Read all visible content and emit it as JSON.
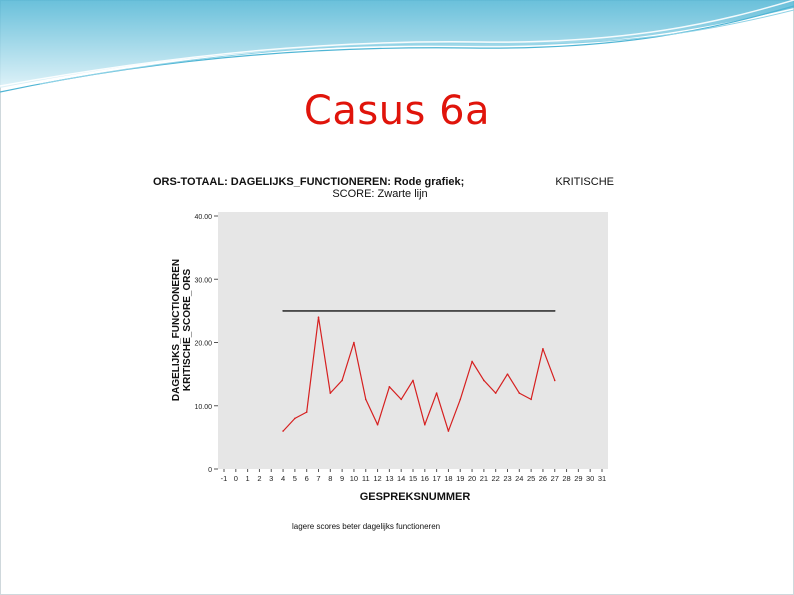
{
  "slide": {
    "title": "Casus 6a"
  },
  "colors": {
    "title": "#e0140b",
    "series": "#d62020",
    "critical_line": "#333333",
    "plot_bg": "#e6e6e6",
    "header_wave": "#6fc7dd"
  },
  "chart_data": {
    "type": "line",
    "title_left_line1": "ORS-TOTAAL: DAGELIJKS_FUNCTIONEREN: Rode grafiek;",
    "title_right": "KRITISCHE",
    "title_line2": "SCORE: Zwarte lijn",
    "ylabel_line1": "DAGELIJKS_FUNCTIONEREN",
    "ylabel_line2": "KRITISCHE_SCORE_ORS",
    "xlabel": "GESPREKSNUMMER",
    "footer": "lagere scores  beter dagelijks functioneren",
    "y_ticks": [
      "0",
      "10.00",
      "20.00",
      "30.00",
      "40.00"
    ],
    "ylim": [
      0,
      40
    ],
    "x_ticks": [
      -1,
      0,
      1,
      2,
      3,
      4,
      5,
      6,
      7,
      8,
      9,
      10,
      11,
      12,
      13,
      14,
      15,
      16,
      17,
      18,
      19,
      20,
      21,
      22,
      23,
      24,
      25,
      26,
      27,
      28,
      29,
      30,
      31
    ],
    "xlim": [
      -1,
      31
    ],
    "grid": false,
    "series": [
      {
        "x": [
          4,
          5,
          6,
          7,
          8,
          9,
          10,
          11,
          12,
          13,
          14,
          15,
          16,
          17,
          18,
          19,
          20,
          21,
          22,
          23,
          24,
          25,
          26,
          27
        ],
        "values": [
          6,
          8,
          9,
          24,
          12,
          14,
          20,
          11,
          7,
          13,
          11,
          14,
          7,
          12,
          6,
          11,
          17,
          14,
          12,
          15,
          12,
          11,
          19,
          14
        ],
        "color": "#d62020"
      },
      {
        "x": [
          4,
          27
        ],
        "values": [
          25,
          25
        ],
        "color": "#333333"
      }
    ]
  }
}
